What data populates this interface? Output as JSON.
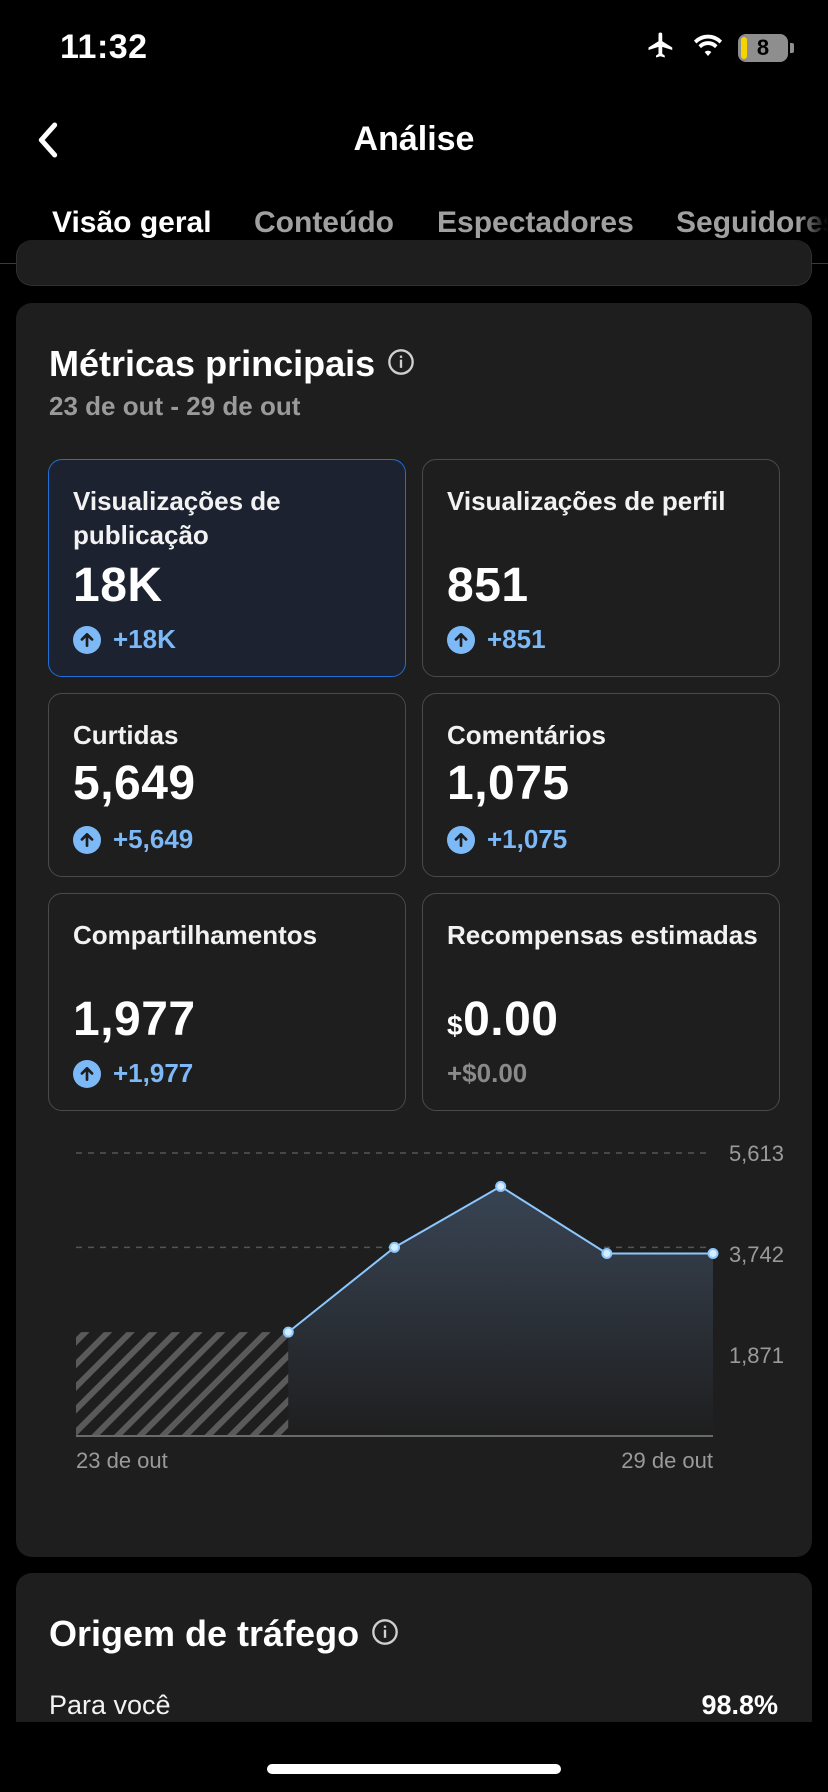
{
  "status_bar": {
    "time": "11:32",
    "battery_level": "8"
  },
  "header": {
    "title": "Análise"
  },
  "tabs": [
    {
      "label": "Visão geral",
      "active": true
    },
    {
      "label": "Conteúdo",
      "active": false
    },
    {
      "label": "Espectadores",
      "active": false
    },
    {
      "label": "Seguidores",
      "active": false
    }
  ],
  "key_metrics": {
    "title": "Métricas principais",
    "date_range": "23 de out - 29 de out",
    "metrics": [
      {
        "label": "Visualizações de publicação",
        "value": "18K",
        "delta": "+18K",
        "selected": true
      },
      {
        "label": "Visualizações de perfil",
        "value": "851",
        "delta": "+851",
        "selected": false
      },
      {
        "label": "Curtidas",
        "value": "5,649",
        "delta": "+5,649",
        "selected": false
      },
      {
        "label": "Comentários",
        "value": "1,075",
        "delta": "+1,075",
        "selected": false
      },
      {
        "label": "Compartilhamentos",
        "value": "1,977",
        "delta": "+1,977",
        "selected": false
      },
      {
        "label": "Recompensas estimadas",
        "currency": "$",
        "value": "0.00",
        "delta": "+$0.00",
        "selected": false
      }
    ]
  },
  "chart_data": {
    "type": "area",
    "y_ticks": [
      "5,613",
      "3,742",
      "1,871"
    ],
    "ylim": [
      0,
      5613
    ],
    "x_labels": [
      "23 de out",
      "29 de out"
    ],
    "x": [
      1,
      2,
      3,
      4,
      5
    ],
    "values": [
      2060,
      3742,
      4950,
      3620,
      3620
    ],
    "no_data_range_days": 2,
    "line_color": "#8cc8ff"
  },
  "traffic": {
    "title": "Origem de tráfego",
    "rows": [
      {
        "label": "Para você",
        "value": "98.8%"
      }
    ]
  },
  "colors": {
    "accent": "#7db9f7",
    "selected_border": "#1f6fd6",
    "card_bg": "#1e1e1e"
  }
}
